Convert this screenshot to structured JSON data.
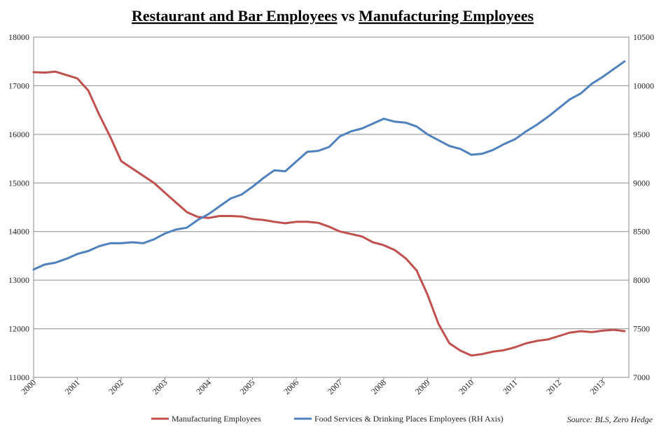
{
  "chart_data": {
    "type": "line",
    "title_parts": [
      {
        "text": "Restaurant and Bar Employees",
        "underline": true
      },
      {
        "text": " vs ",
        "underline": false
      },
      {
        "text": "Manufacturing Employees",
        "underline": true
      }
    ],
    "left_axis": {
      "min": 11000,
      "max": 18000,
      "ticks": [
        11000,
        12000,
        13000,
        14000,
        15000,
        16000,
        17000,
        18000
      ]
    },
    "right_axis": {
      "min": 7000,
      "max": 10500,
      "ticks": [
        7000,
        7500,
        8000,
        8500,
        9000,
        9500,
        10000,
        10500
      ]
    },
    "x_axis": {
      "min": 2000,
      "max": 2013.6,
      "ticks": [
        "2000",
        "2001",
        "2002",
        "2003",
        "2004",
        "2005",
        "2006",
        "2007",
        "2008",
        "2009",
        "2010",
        "2011",
        "2012",
        "2013"
      ]
    },
    "grid": true,
    "legend_placement": "bottom",
    "source": "Source: BLS, Zero Hedge",
    "series": [
      {
        "name": "Manufacturing Employees",
        "axis": "left",
        "color": "#c0504d",
        "x": [
          2000.0,
          2000.25,
          2000.5,
          2000.75,
          2001.0,
          2001.25,
          2001.5,
          2001.75,
          2002.0,
          2002.25,
          2002.5,
          2002.75,
          2003.0,
          2003.25,
          2003.5,
          2003.75,
          2004.0,
          2004.25,
          2004.5,
          2004.75,
          2005.0,
          2005.25,
          2005.5,
          2005.75,
          2006.0,
          2006.25,
          2006.5,
          2006.75,
          2007.0,
          2007.25,
          2007.5,
          2007.75,
          2008.0,
          2008.25,
          2008.5,
          2008.75,
          2009.0,
          2009.25,
          2009.5,
          2009.75,
          2010.0,
          2010.25,
          2010.5,
          2010.75,
          2011.0,
          2011.25,
          2011.5,
          2011.75,
          2012.0,
          2012.25,
          2012.5,
          2012.75,
          2013.0,
          2013.25,
          2013.5
        ],
        "values": [
          17280,
          17270,
          17290,
          17220,
          17150,
          16900,
          16400,
          15950,
          15450,
          15300,
          15150,
          15000,
          14800,
          14600,
          14400,
          14300,
          14280,
          14320,
          14320,
          14310,
          14260,
          14240,
          14200,
          14170,
          14200,
          14200,
          14180,
          14100,
          14000,
          13950,
          13900,
          13780,
          13720,
          13620,
          13450,
          13200,
          12700,
          12100,
          11700,
          11550,
          11450,
          11480,
          11530,
          11560,
          11620,
          11700,
          11750,
          11780,
          11850,
          11920,
          11950,
          11930,
          11960,
          11980,
          11950
        ]
      },
      {
        "name": "Food Services & Drinking Places Employees (RH Axis)",
        "axis": "right",
        "color": "#4f81bd",
        "x": [
          2000.0,
          2000.25,
          2000.5,
          2000.75,
          2001.0,
          2001.25,
          2001.5,
          2001.75,
          2002.0,
          2002.25,
          2002.5,
          2002.75,
          2003.0,
          2003.25,
          2003.5,
          2003.75,
          2004.0,
          2004.25,
          2004.5,
          2004.75,
          2005.0,
          2005.25,
          2005.5,
          2005.75,
          2006.0,
          2006.25,
          2006.5,
          2006.75,
          2007.0,
          2007.25,
          2007.5,
          2007.75,
          2008.0,
          2008.25,
          2008.5,
          2008.75,
          2009.0,
          2009.25,
          2009.5,
          2009.75,
          2010.0,
          2010.25,
          2010.5,
          2010.75,
          2011.0,
          2011.25,
          2011.5,
          2011.75,
          2012.0,
          2012.25,
          2012.5,
          2012.75,
          2013.0,
          2013.25,
          2013.5
        ],
        "values": [
          8110,
          8160,
          8180,
          8220,
          8270,
          8300,
          8350,
          8380,
          8380,
          8390,
          8380,
          8420,
          8480,
          8520,
          8540,
          8620,
          8680,
          8760,
          8840,
          8880,
          8960,
          9050,
          9130,
          9120,
          9220,
          9320,
          9330,
          9370,
          9480,
          9530,
          9560,
          9610,
          9660,
          9630,
          9620,
          9580,
          9500,
          9440,
          9380,
          9350,
          9290,
          9300,
          9340,
          9400,
          9450,
          9530,
          9600,
          9680,
          9770,
          9860,
          9920,
          10020,
          10090,
          10170,
          10250
        ]
      }
    ]
  }
}
